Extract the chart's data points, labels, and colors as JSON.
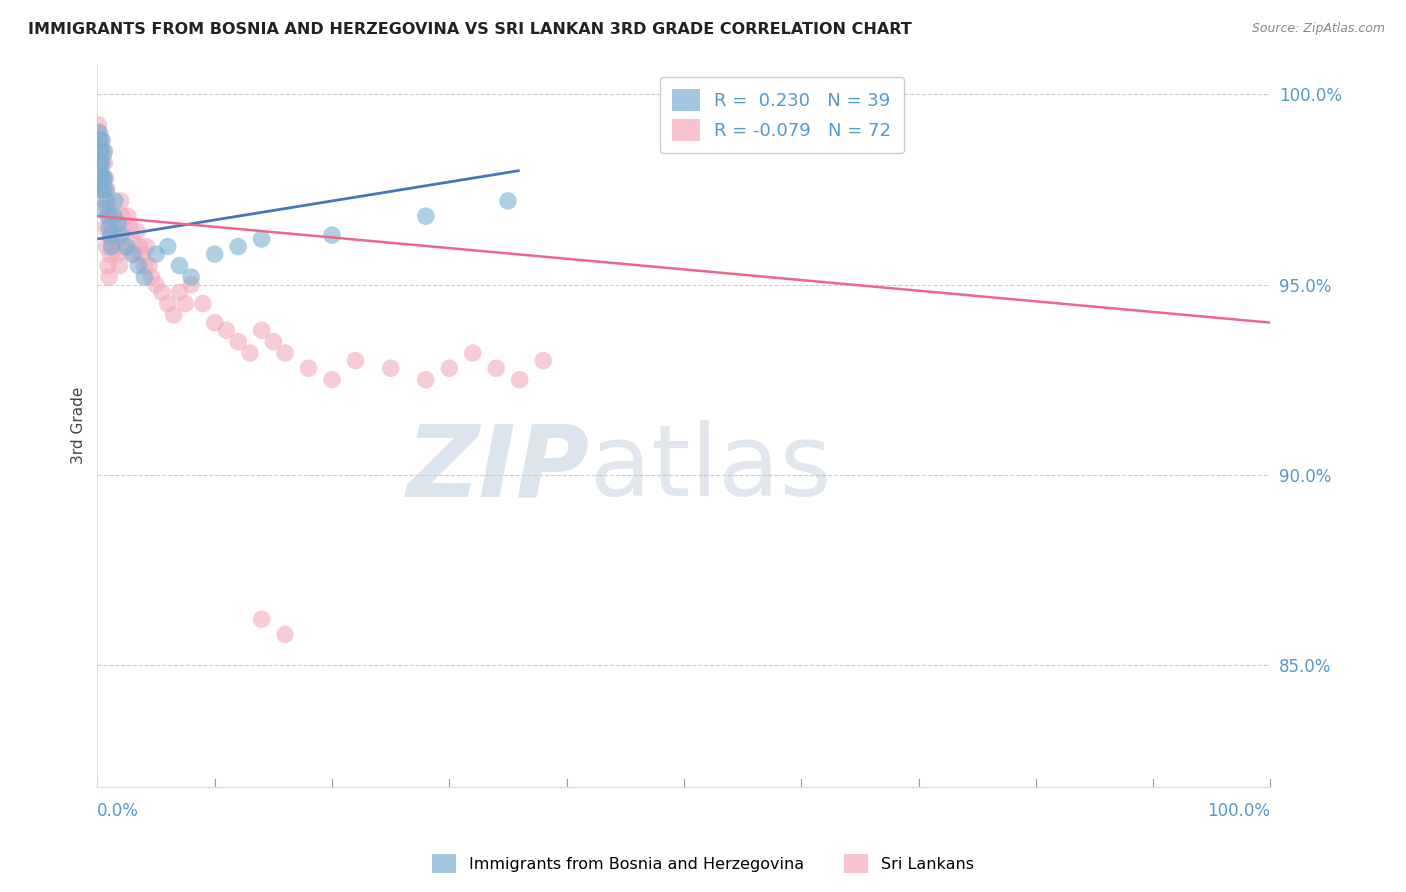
{
  "title": "IMMIGRANTS FROM BOSNIA AND HERZEGOVINA VS SRI LANKAN 3RD GRADE CORRELATION CHART",
  "source": "Source: ZipAtlas.com",
  "ylabel": "3rd Grade",
  "xlim": [
    0,
    1
  ],
  "ylim": [
    0.818,
    1.008
  ],
  "yticks": [
    0.85,
    0.9,
    0.95,
    1.0
  ],
  "ytick_labels": [
    "85.0%",
    "90.0%",
    "95.0%",
    "100.0%"
  ],
  "blue_color": "#7BAFD4",
  "pink_color": "#F4AABB",
  "blue_line_color": "#4477BB",
  "pink_line_color": "#EE6688",
  "watermark_zip": "ZIP",
  "watermark_atlas": "atlas",
  "blue_trend_x": [
    0.0,
    0.36
  ],
  "blue_trend_y": [
    0.962,
    0.98
  ],
  "pink_trend_x": [
    0.0,
    1.0
  ],
  "pink_trend_y": [
    0.968,
    0.94
  ],
  "blue_x": [
    0.001,
    0.001,
    0.002,
    0.002,
    0.002,
    0.003,
    0.003,
    0.003,
    0.004,
    0.004,
    0.005,
    0.005,
    0.005,
    0.006,
    0.006,
    0.007,
    0.008,
    0.009,
    0.01,
    0.011,
    0.012,
    0.014,
    0.015,
    0.018,
    0.02,
    0.025,
    0.03,
    0.035,
    0.04,
    0.05,
    0.06,
    0.07,
    0.08,
    0.1,
    0.12,
    0.14,
    0.2,
    0.28,
    0.35
  ],
  "blue_y": [
    0.99,
    0.985,
    0.988,
    0.982,
    0.978,
    0.985,
    0.98,
    0.975,
    0.988,
    0.982,
    0.978,
    0.975,
    0.97,
    0.985,
    0.978,
    0.975,
    0.972,
    0.968,
    0.965,
    0.963,
    0.96,
    0.968,
    0.972,
    0.966,
    0.963,
    0.96,
    0.958,
    0.955,
    0.952,
    0.958,
    0.96,
    0.955,
    0.952,
    0.958,
    0.96,
    0.962,
    0.963,
    0.968,
    0.972
  ],
  "pink_x": [
    0.001,
    0.001,
    0.002,
    0.002,
    0.003,
    0.003,
    0.004,
    0.004,
    0.005,
    0.005,
    0.006,
    0.006,
    0.007,
    0.007,
    0.008,
    0.008,
    0.009,
    0.009,
    0.01,
    0.01,
    0.011,
    0.011,
    0.012,
    0.013,
    0.014,
    0.015,
    0.016,
    0.017,
    0.018,
    0.019,
    0.02,
    0.021,
    0.022,
    0.024,
    0.026,
    0.028,
    0.03,
    0.032,
    0.034,
    0.036,
    0.038,
    0.04,
    0.042,
    0.044,
    0.046,
    0.05,
    0.055,
    0.06,
    0.065,
    0.07,
    0.075,
    0.08,
    0.09,
    0.1,
    0.11,
    0.12,
    0.13,
    0.14,
    0.15,
    0.16,
    0.18,
    0.2,
    0.22,
    0.25,
    0.28,
    0.3,
    0.32,
    0.34,
    0.36,
    0.38,
    0.14,
    0.16
  ],
  "pink_y": [
    0.992,
    0.988,
    0.985,
    0.99,
    0.988,
    0.982,
    0.986,
    0.978,
    0.984,
    0.975,
    0.982,
    0.972,
    0.978,
    0.965,
    0.975,
    0.96,
    0.97,
    0.955,
    0.968,
    0.952,
    0.965,
    0.958,
    0.962,
    0.96,
    0.968,
    0.965,
    0.962,
    0.958,
    0.96,
    0.955,
    0.972,
    0.968,
    0.965,
    0.96,
    0.968,
    0.965,
    0.962,
    0.958,
    0.964,
    0.96,
    0.958,
    0.955,
    0.96,
    0.955,
    0.952,
    0.95,
    0.948,
    0.945,
    0.942,
    0.948,
    0.945,
    0.95,
    0.945,
    0.94,
    0.938,
    0.935,
    0.932,
    0.938,
    0.935,
    0.932,
    0.928,
    0.925,
    0.93,
    0.928,
    0.925,
    0.928,
    0.932,
    0.928,
    0.925,
    0.93,
    0.862,
    0.858
  ]
}
